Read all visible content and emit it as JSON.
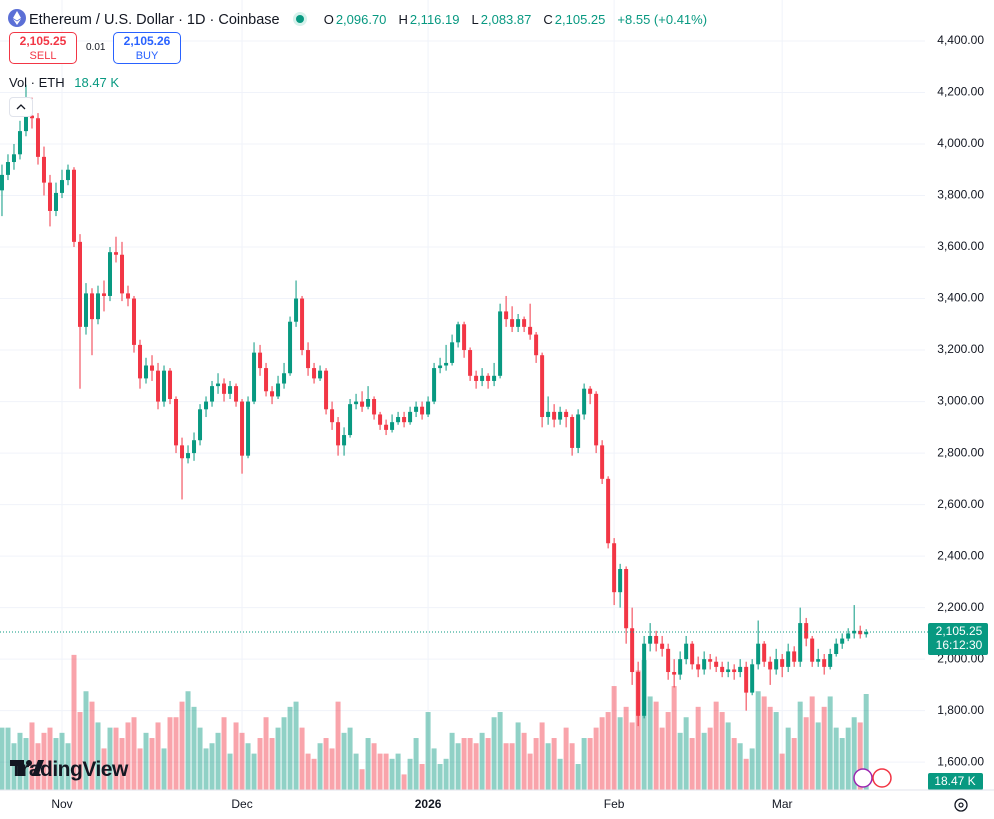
{
  "header": {
    "title": "Ethereum / U.S. Dollar · 1D · Coinbase",
    "o_key": "O",
    "o": "2,096.70",
    "h_key": "H",
    "h": "2,116.19",
    "l_key": "L",
    "l": "2,083.87",
    "c_key": "C",
    "c": "2,105.25",
    "change": "+8.55 (+0.41%)",
    "sell_price": "2,105.25",
    "sell": "SELL",
    "spread": "0.01",
    "buy_price": "2,105.26",
    "buy": "BUY",
    "vol_title": "Vol · ETH",
    "vol_value": "18.47 K"
  },
  "logo": "TradingView",
  "chart_data": {
    "type": "candlestick",
    "up_color": "#089981",
    "down_color": "#f23645",
    "grid": true,
    "xlim": [
      -0.33,
      153.8
    ],
    "ylim": [
      1492,
      4559
    ],
    "volume_lim": [
      0,
      152
    ],
    "xticks": [
      {
        "value": 10,
        "label": "Nov"
      },
      {
        "value": 40,
        "label": "Dec"
      },
      {
        "value": 71,
        "label": "2026"
      },
      {
        "value": 102,
        "label": "Feb"
      },
      {
        "value": 130,
        "label": "Mar"
      }
    ],
    "yticks": [
      {
        "value": 4400,
        "label": "4,400.00"
      },
      {
        "value": 4200,
        "label": "4,200.00"
      },
      {
        "value": 4000,
        "label": "4,000.00"
      },
      {
        "value": 3800,
        "label": "3,800.00"
      },
      {
        "value": 3600,
        "label": "3,600.00"
      },
      {
        "value": 3400,
        "label": "3,400.00"
      },
      {
        "value": 3200,
        "label": "3,200.00"
      },
      {
        "value": 3000,
        "label": "3,000.00"
      },
      {
        "value": 2800,
        "label": "2,800.00"
      },
      {
        "value": 2600,
        "label": "2,600.00"
      },
      {
        "value": 2400,
        "label": "2,400.00"
      },
      {
        "value": 2200,
        "label": "2,200.00"
      },
      {
        "value": 2000,
        "label": "2,000.00"
      },
      {
        "value": 1800,
        "label": "1,800.00"
      },
      {
        "value": 1600,
        "label": "1,600.00"
      }
    ],
    "last_price": 2105.25,
    "last_price_label": "2,105.25",
    "countdown": "16:12:30",
    "volume_label": "18.47 K",
    "open": [
      3820,
      3880,
      3930,
      3960,
      4050,
      4110,
      4100,
      3950,
      3850,
      3740,
      3810,
      3860,
      3900,
      3620,
      3290,
      3420,
      3320,
      3420,
      3410,
      3580,
      3570,
      3420,
      3400,
      3220,
      3090,
      3140,
      3120,
      3000,
      3120,
      3010,
      2830,
      2780,
      2800,
      2850,
      2970,
      3000,
      3060,
      3070,
      3030,
      3060,
      3000,
      2790,
      3000,
      3190,
      3130,
      3040,
      3020,
      3070,
      3110,
      3310,
      3400,
      3200,
      3130,
      3090,
      3120,
      2970,
      2920,
      2830,
      2870,
      2990,
      3000,
      2980,
      3010,
      2950,
      2910,
      2890,
      2920,
      2940,
      2920,
      2960,
      2980,
      2950,
      3000,
      3130,
      3140,
      3150,
      3230,
      3300,
      3200,
      3100,
      3080,
      3100,
      3080,
      3100,
      3350,
      3320,
      3290,
      3320,
      3290,
      3260,
      3180,
      2940,
      2960,
      2930,
      2960,
      2940,
      2820,
      2950,
      3050,
      3030,
      2830,
      2700,
      2450,
      2260,
      2350,
      2120,
      1950,
      1780,
      2060,
      2090,
      2060,
      2040,
      1950,
      1940,
      2000,
      2060,
      1980,
      1960,
      2000,
      1990,
      1970,
      1950,
      1960,
      1950,
      1970,
      1870,
      1980,
      2060,
      1990,
      1960,
      2000,
      1970,
      2030,
      1990,
      2140,
      2080,
      1990,
      2000,
      1970,
      2020,
      2060,
      2080,
      2100,
      2110,
      2096.7
    ],
    "high": [
      3920,
      3960,
      4000,
      4090,
      4230,
      4180,
      4120,
      3990,
      3880,
      3850,
      3900,
      3920,
      3910,
      3650,
      3460,
      3440,
      3450,
      3470,
      3600,
      3640,
      3620,
      3450,
      3410,
      3240,
      3170,
      3180,
      3150,
      3140,
      3130,
      3020,
      2860,
      2830,
      2880,
      2990,
      3020,
      3080,
      3110,
      3090,
      3080,
      3070,
      3010,
      3020,
      3230,
      3220,
      3150,
      3060,
      3100,
      3150,
      3330,
      3470,
      3410,
      3230,
      3150,
      3140,
      3130,
      3000,
      2940,
      2900,
      3010,
      3030,
      3040,
      3060,
      3020,
      2960,
      2930,
      2950,
      2960,
      2960,
      2980,
      3000,
      3000,
      3020,
      3150,
      3170,
      3220,
      3260,
      3310,
      3310,
      3210,
      3120,
      3130,
      3110,
      3150,
      3380,
      3410,
      3370,
      3340,
      3330,
      3380,
      3270,
      3190,
      3020,
      2990,
      2980,
      2970,
      2950,
      2970,
      3070,
      3060,
      3040,
      2850,
      2710,
      2470,
      2370,
      2360,
      2200,
      1990,
      2090,
      2140,
      2110,
      2090,
      2060,
      2000,
      2030,
      2090,
      2070,
      2010,
      2030,
      2020,
      2010,
      1990,
      1990,
      1980,
      2000,
      1990,
      2000,
      2150,
      2070,
      2010,
      2040,
      2020,
      2060,
      2050,
      2200,
      2160,
      2090,
      2040,
      2020,
      2040,
      2080,
      2100,
      2120,
      2210,
      2130,
      2116.19
    ],
    "low": [
      3720,
      3860,
      3900,
      3940,
      4030,
      4060,
      3920,
      3800,
      3680,
      3720,
      3790,
      3840,
      3600,
      3050,
      3260,
      3180,
      3300,
      3350,
      3390,
      3540,
      3390,
      3370,
      3190,
      3050,
      3070,
      3080,
      2970,
      2980,
      2990,
      2800,
      2620,
      2760,
      2770,
      2830,
      2940,
      2980,
      3030,
      3000,
      3010,
      2980,
      2720,
      2780,
      2990,
      3100,
      3020,
      2990,
      3010,
      3050,
      3100,
      3290,
      3180,
      3100,
      3070,
      3080,
      2950,
      2890,
      2790,
      2790,
      2860,
      2970,
      2960,
      2970,
      2930,
      2890,
      2870,
      2880,
      2910,
      2900,
      2910,
      2940,
      2930,
      2940,
      2990,
      3110,
      3120,
      3140,
      3210,
      3170,
      3080,
      3050,
      3060,
      3050,
      3060,
      3090,
      3290,
      3270,
      3270,
      3270,
      3240,
      3150,
      2900,
      2910,
      2900,
      2910,
      2900,
      2790,
      2800,
      2930,
      2990,
      2800,
      2680,
      2430,
      2210,
      2200,
      2060,
      1900,
      1740,
      1770,
      2030,
      2030,
      2010,
      1920,
      1890,
      1920,
      1980,
      1960,
      1930,
      1940,
      1960,
      1950,
      1930,
      1930,
      1920,
      1930,
      1800,
      1860,
      1960,
      1970,
      1900,
      1940,
      1930,
      1950,
      1970,
      1970,
      2050,
      1970,
      1970,
      1940,
      1960,
      2010,
      2040,
      2070,
      2080,
      2080,
      2083.87
    ],
    "close": [
      3880,
      3930,
      3960,
      4050,
      4110,
      4100,
      3950,
      3850,
      3740,
      3810,
      3860,
      3900,
      3620,
      3290,
      3420,
      3320,
      3420,
      3410,
      3580,
      3570,
      3420,
      3400,
      3220,
      3090,
      3140,
      3120,
      3000,
      3120,
      3010,
      2830,
      2780,
      2800,
      2850,
      2970,
      3000,
      3060,
      3070,
      3030,
      3060,
      3000,
      2790,
      3000,
      3190,
      3130,
      3040,
      3020,
      3070,
      3110,
      3310,
      3400,
      3200,
      3130,
      3090,
      3120,
      2970,
      2920,
      2830,
      2870,
      2990,
      3000,
      2980,
      3010,
      2950,
      2910,
      2890,
      2920,
      2940,
      2920,
      2960,
      2980,
      2950,
      3000,
      3130,
      3140,
      3150,
      3230,
      3300,
      3200,
      3100,
      3080,
      3100,
      3080,
      3100,
      3350,
      3320,
      3290,
      3320,
      3290,
      3260,
      3180,
      2940,
      2960,
      2930,
      2960,
      2940,
      2820,
      2950,
      3050,
      3030,
      2830,
      2700,
      2450,
      2260,
      2350,
      2120,
      1950,
      1780,
      2060,
      2090,
      2060,
      2040,
      1950,
      1940,
      2000,
      2060,
      1980,
      1960,
      2000,
      1990,
      1970,
      1950,
      1960,
      1950,
      1970,
      1870,
      1980,
      2060,
      1990,
      1960,
      2000,
      1970,
      2030,
      1990,
      2140,
      2080,
      1990,
      2000,
      1970,
      2020,
      2060,
      2080,
      2100,
      2110,
      2096.7,
      2105.25
    ],
    "volume": [
      12,
      12,
      9,
      11,
      10,
      13,
      9,
      11,
      12,
      10,
      11,
      9,
      26,
      15,
      19,
      17,
      13,
      8,
      12,
      12,
      10,
      13,
      14,
      8,
      11,
      10,
      13,
      8,
      14,
      14,
      17,
      19,
      16,
      12,
      8,
      9,
      11,
      14,
      7,
      13,
      11,
      9,
      7,
      10,
      14,
      10,
      12,
      14,
      16,
      17,
      12,
      7,
      6,
      9,
      10,
      8,
      17,
      11,
      12,
      7,
      4,
      10,
      9,
      7,
      7,
      6,
      7,
      3,
      6,
      10,
      5,
      15,
      8,
      5,
      6,
      11,
      9,
      10,
      10,
      9,
      11,
      10,
      14,
      15,
      9,
      9,
      13,
      11,
      7,
      10,
      13,
      9,
      10,
      6,
      12,
      9,
      5,
      10,
      10,
      12,
      14,
      15,
      20,
      14,
      16,
      13,
      23,
      25,
      18,
      17,
      12,
      15,
      20,
      11,
      14,
      10,
      16,
      11,
      12,
      17,
      15,
      13,
      10,
      9,
      6,
      8,
      19,
      18,
      16,
      15,
      7,
      12,
      10,
      17,
      14,
      18,
      13,
      16,
      18,
      12,
      10,
      12,
      14,
      13,
      18.47
    ]
  }
}
